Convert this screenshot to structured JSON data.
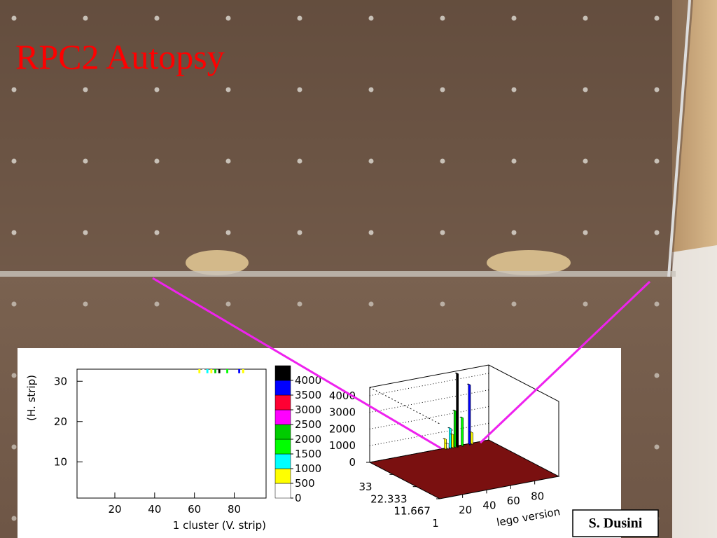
{
  "title": "RPC2 Autopsy",
  "credit": "S. Dusini",
  "chart_data": [
    {
      "type": "heatmap",
      "xlabel": "1 cluster    (V. strip)",
      "ylabel": "(H. strip)",
      "xlim": [
        1,
        96
      ],
      "ylim": [
        1,
        33
      ],
      "xticks": [
        20,
        40,
        60,
        80
      ],
      "yticks": [
        10,
        20,
        30
      ],
      "zlim": [
        0,
        4500
      ],
      "zticks": [
        0,
        500,
        1000,
        1500,
        2000,
        2500,
        3000,
        3500,
        4000
      ],
      "palette": [
        "#ffffff",
        "#ffff00",
        "#00ffff",
        "#00ff00",
        "#00cc00",
        "#ff00ff",
        "#ff0033",
        "#0000ff",
        "#000000"
      ],
      "x": [
        62,
        64,
        66,
        68,
        70,
        72,
        76,
        82,
        84
      ],
      "y": [
        32,
        32,
        32,
        32,
        32,
        32,
        32,
        32,
        32
      ],
      "values": [
        600,
        300,
        1200,
        800,
        2200,
        4400,
        1700,
        3600,
        700
      ]
    },
    {
      "type": "lego",
      "xlabel": "lego version",
      "xlim": [
        1,
        100
      ],
      "ylim": [
        1,
        33
      ],
      "zlim": [
        0,
        4500
      ],
      "xticks": [
        20,
        40,
        60,
        80
      ],
      "yticks": [
        1,
        11.667,
        22.333,
        33
      ],
      "zticks": [
        0,
        1000,
        2000,
        3000,
        4000
      ],
      "palette": [
        "#ffffff",
        "#ffff00",
        "#00ffff",
        "#00ff00",
        "#00cc00",
        "#ff00ff",
        "#ff0033",
        "#0000ff",
        "#000000"
      ],
      "x": [
        62,
        64,
        66,
        68,
        70,
        72,
        76,
        82,
        84
      ],
      "y": [
        32,
        32,
        32,
        32,
        32,
        32,
        32,
        32,
        32
      ],
      "values": [
        600,
        300,
        1200,
        800,
        2200,
        4400,
        1700,
        3600,
        700
      ]
    }
  ]
}
